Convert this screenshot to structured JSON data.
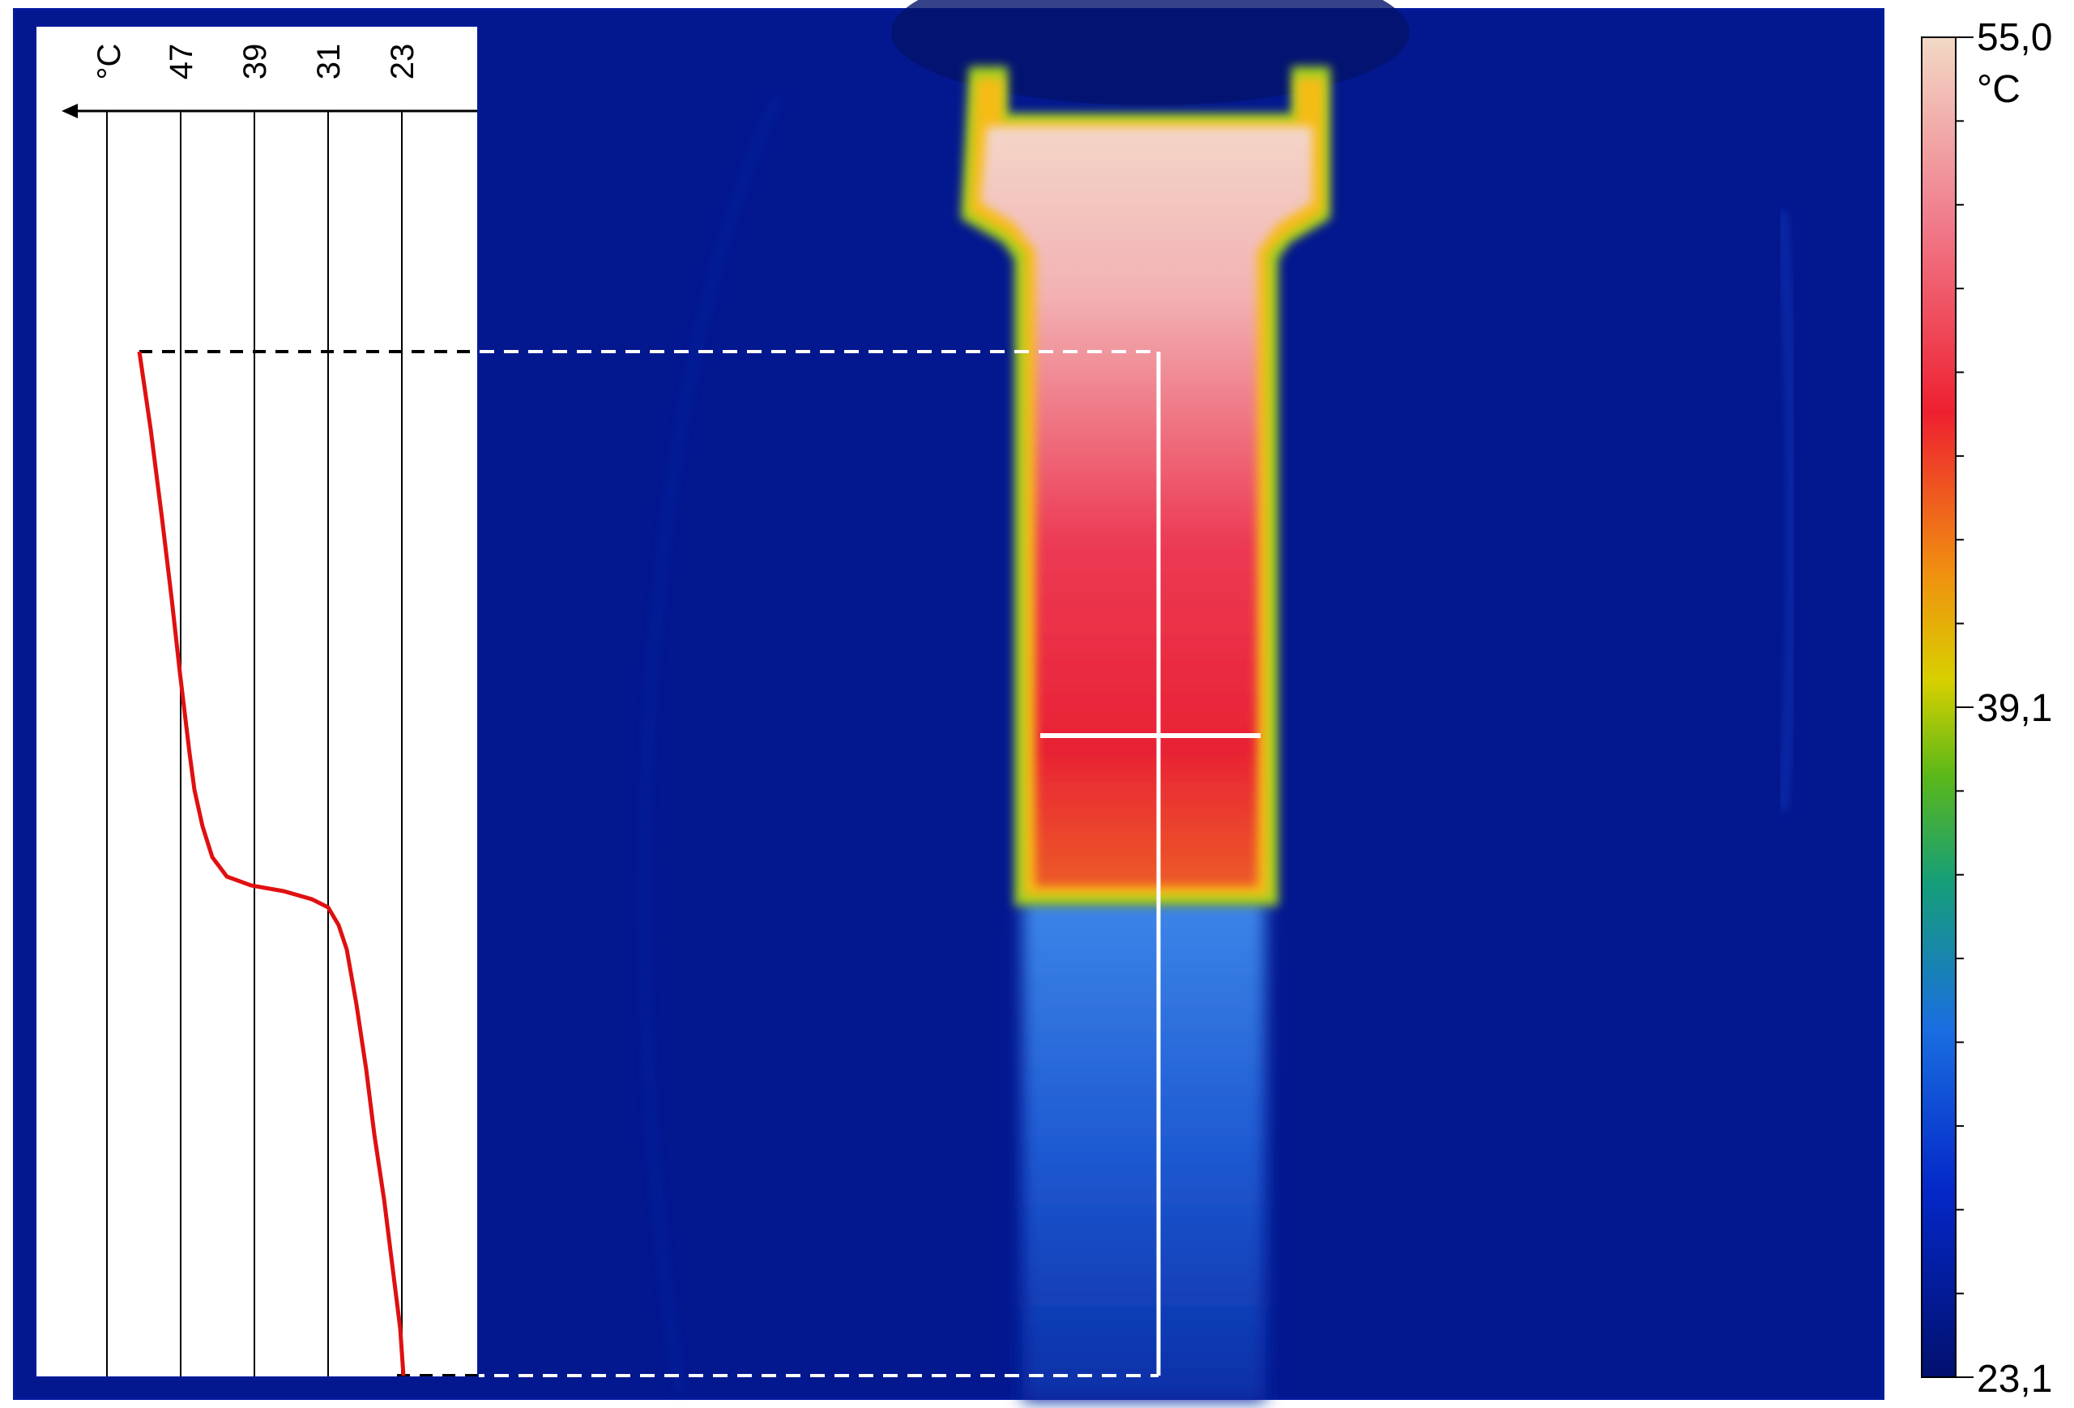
{
  "profile_plot": {
    "axis_unit": "°C",
    "ticks": [
      "47",
      "39",
      "31",
      "23"
    ],
    "tick_values": [
      47,
      39,
      31,
      23
    ],
    "axis_range": [
      55,
      15
    ],
    "line_color": "#e01010"
  },
  "colorbar": {
    "max_label": "55,0",
    "mid_label": "39,1",
    "min_label": "23,1",
    "unit": "°C",
    "max_value": 55.0,
    "mid_value": 39.1,
    "min_value": 23.1
  },
  "palette": {
    "background": "#03178f",
    "frame": "#041a9a",
    "hot": "#f5d8c8",
    "warm": "#ea2040",
    "cold": "#1a55d0"
  }
}
